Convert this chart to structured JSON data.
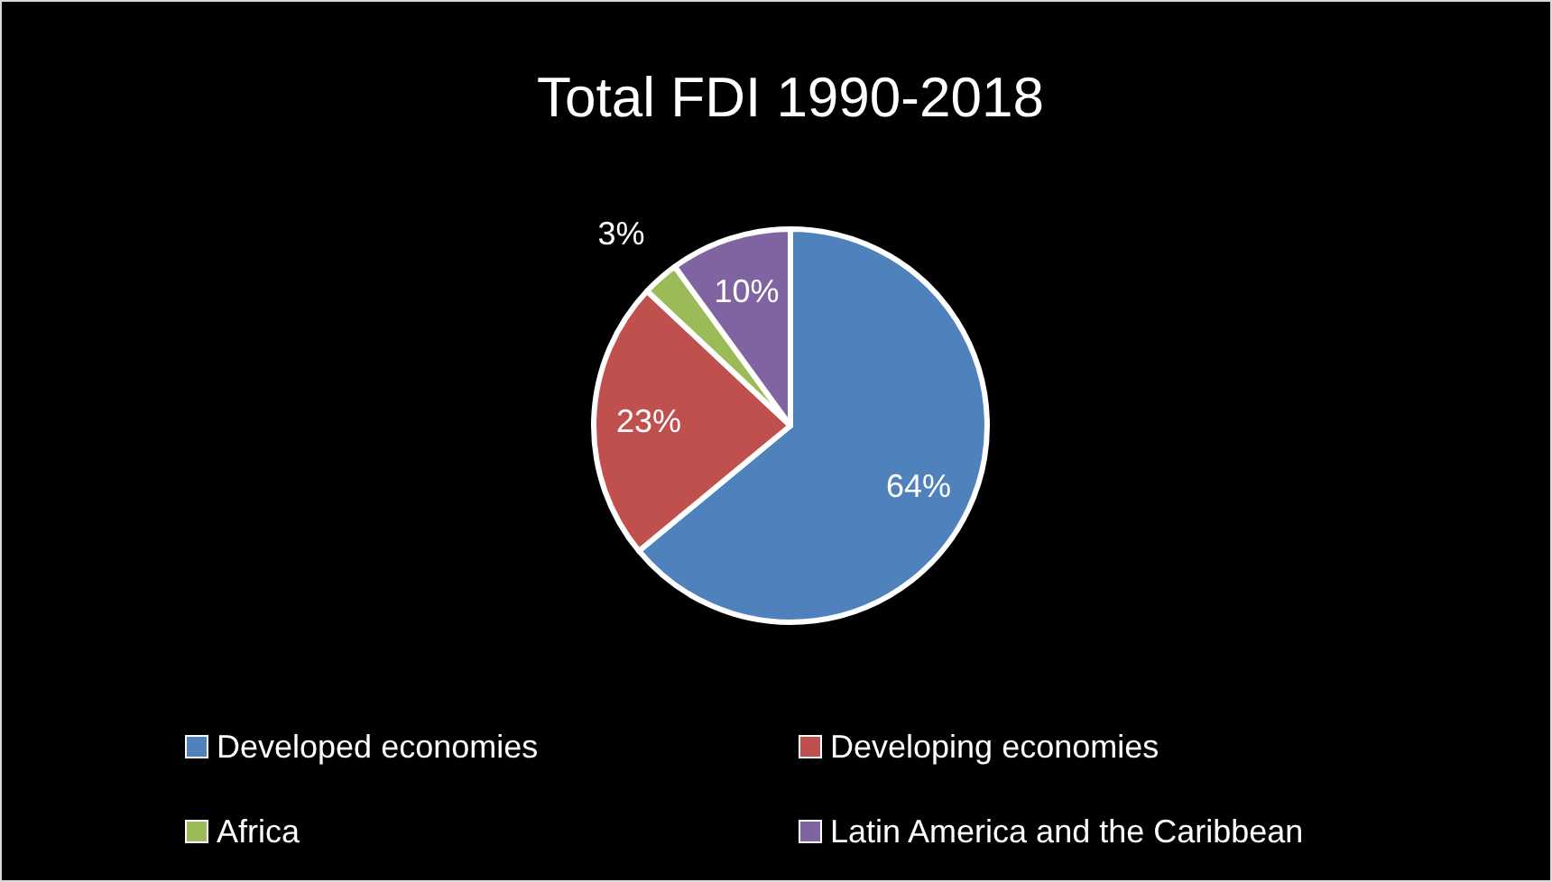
{
  "chart_data": {
    "type": "pie",
    "title": "Total FDI  1990-2018",
    "categories": [
      "Developed economies",
      "Developing economies",
      "Africa",
      "Latin America and the Caribbean"
    ],
    "values": [
      64,
      23,
      3,
      10
    ],
    "colors": [
      "#4f81bd",
      "#c0504d",
      "#9bbb59",
      "#8064a2"
    ],
    "value_labels": [
      "64%",
      "23%",
      "3%",
      "10%"
    ],
    "legend": "bottom"
  }
}
